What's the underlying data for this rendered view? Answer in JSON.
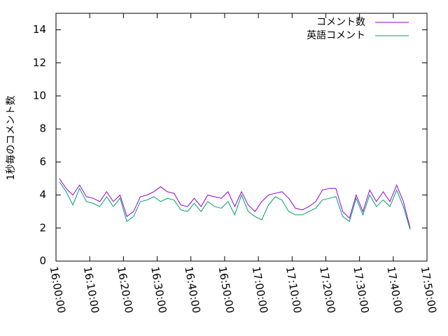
{
  "chart_data": {
    "type": "line",
    "y_label": "1秒毎のコメント数",
    "x": [
      "16:01:00",
      "16:03:00",
      "16:05:00",
      "16:07:00",
      "16:09:00",
      "16:11:00",
      "16:13:00",
      "16:15:00",
      "16:17:00",
      "16:19:00",
      "16:21:00",
      "16:23:00",
      "16:25:00",
      "16:27:00",
      "16:29:00",
      "16:31:00",
      "16:33:00",
      "16:35:00",
      "16:37:00",
      "16:39:00",
      "16:41:00",
      "16:43:00",
      "16:45:00",
      "16:47:00",
      "16:49:00",
      "16:51:00",
      "16:53:00",
      "16:55:00",
      "16:57:00",
      "16:59:00",
      "17:01:00",
      "17:03:00",
      "17:05:00",
      "17:07:00",
      "17:09:00",
      "17:11:00",
      "17:13:00",
      "17:15:00",
      "17:17:00",
      "17:19:00",
      "17:21:00",
      "17:23:00",
      "17:25:00",
      "17:27:00",
      "17:29:00",
      "17:31:00",
      "17:33:00",
      "17:35:00",
      "17:37:00",
      "17:39:00",
      "17:41:00",
      "17:43:00",
      "17:45:00"
    ],
    "series": [
      {
        "name": "コメント数",
        "color": "#9400d3",
        "values": [
          5.0,
          4.4,
          4.0,
          4.6,
          3.9,
          3.8,
          3.6,
          4.2,
          3.6,
          4.0,
          2.7,
          3.0,
          3.9,
          4.0,
          4.2,
          4.5,
          4.2,
          4.1,
          3.4,
          3.3,
          3.8,
          3.3,
          4.0,
          3.9,
          3.8,
          4.2,
          3.3,
          4.2,
          3.4,
          3.0,
          3.6,
          4.0,
          4.1,
          4.2,
          3.8,
          3.2,
          3.1,
          3.3,
          3.6,
          4.3,
          4.4,
          4.4,
          3.0,
          2.6,
          4.0,
          3.0,
          4.3,
          3.6,
          4.2,
          3.6,
          4.6,
          3.6,
          2.0
        ]
      },
      {
        "name": "英語コメント",
        "color": "#009e73",
        "values": [
          4.8,
          4.2,
          3.4,
          4.4,
          3.6,
          3.5,
          3.3,
          3.9,
          3.3,
          3.8,
          2.4,
          2.7,
          3.6,
          3.7,
          3.9,
          3.6,
          3.8,
          3.7,
          3.1,
          3.0,
          3.5,
          3.0,
          3.6,
          3.3,
          3.2,
          3.6,
          2.8,
          4.0,
          3.0,
          2.7,
          2.5,
          3.4,
          3.9,
          3.7,
          3.0,
          2.8,
          2.8,
          3.0,
          3.2,
          3.7,
          3.8,
          3.9,
          2.7,
          2.4,
          3.8,
          2.8,
          4.0,
          3.3,
          3.7,
          3.3,
          4.3,
          3.3,
          1.9
        ]
      }
    ],
    "xlim": [
      "16:00:00",
      "17:50:00"
    ],
    "xticks": [
      "16:00:00",
      "16:10:00",
      "16:20:00",
      "16:30:00",
      "16:40:00",
      "16:50:00",
      "17:00:00",
      "17:10:00",
      "17:20:00",
      "17:30:00",
      "17:40:00",
      "17:50:00"
    ],
    "ylim": [
      0,
      15
    ],
    "yticks": [
      0,
      2,
      4,
      6,
      8,
      10,
      12,
      14
    ],
    "legend": "upper right"
  }
}
